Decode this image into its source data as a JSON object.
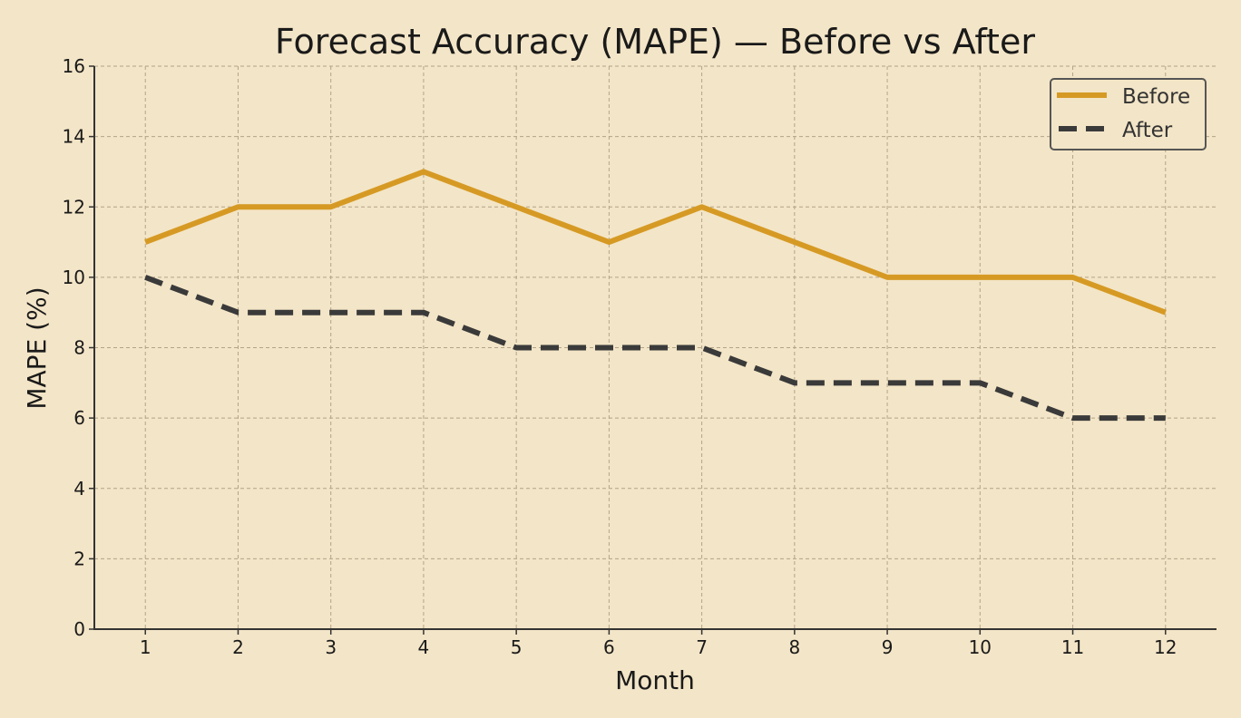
{
  "chart_data": {
    "type": "line",
    "title": "Forecast Accuracy (MAPE) — Before vs After",
    "xlabel": "Month",
    "ylabel": "MAPE (%)",
    "x": [
      1,
      2,
      3,
      4,
      5,
      6,
      7,
      8,
      9,
      10,
      11,
      12
    ],
    "xlim": [
      0.45,
      12.55
    ],
    "ylim": [
      0,
      16
    ],
    "yticks": [
      0,
      2,
      4,
      6,
      8,
      10,
      12,
      14,
      16
    ],
    "grid": true,
    "legend_placement": "top-right",
    "series": [
      {
        "name": "Before",
        "values": [
          11,
          12,
          12,
          13,
          12,
          11,
          12,
          11,
          10,
          10,
          10,
          9
        ],
        "color": "#d69a24",
        "style": "solid"
      },
      {
        "name": "After",
        "values": [
          10,
          9,
          9,
          9,
          8,
          8,
          8,
          7,
          7,
          7,
          6,
          6
        ],
        "color": "#3a3a3a",
        "style": "dashed"
      }
    ],
    "background": "#f3e5c7"
  }
}
